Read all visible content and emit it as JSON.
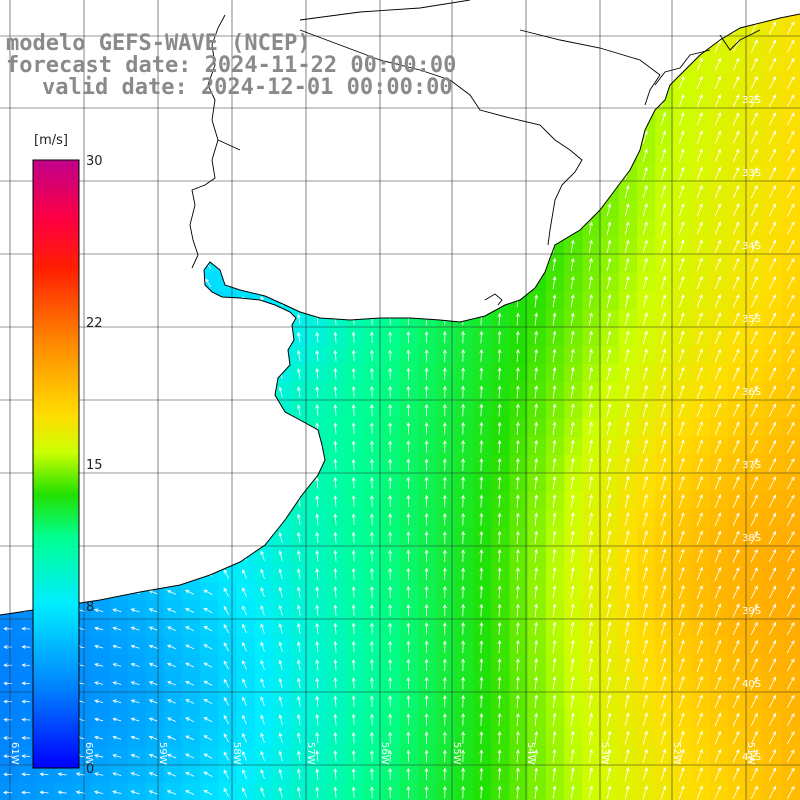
{
  "header": {
    "line1": "modelo GEFS-WAVE (NCEP)",
    "line2": "forecast date: 2024-11-22 00:00:00",
    "line3": "valid date: 2024-12-01 00:00:00"
  },
  "colorbar": {
    "unit": "[m/s]",
    "ticks": [
      {
        "value": 30,
        "label": "30"
      },
      {
        "value": 22,
        "label": "22"
      },
      {
        "value": 15,
        "label": "15"
      },
      {
        "value": 8,
        "label": "8"
      },
      {
        "value": 0,
        "label": "0"
      }
    ],
    "colors": [
      "#0000ff",
      "#0077ff",
      "#00e6ff",
      "#00ff80",
      "#22dd00",
      "#ffff00",
      "#ffaa00",
      "#ff3300",
      "#ff0000",
      "#c8007a"
    ]
  },
  "lat_labels": [
    "32S",
    "33S",
    "34S",
    "35S",
    "36S",
    "37S",
    "38S",
    "39S",
    "40S",
    "41S"
  ],
  "lon_labels": [
    "61W",
    "60W",
    "59W",
    "58W",
    "57W",
    "56W",
    "55W",
    "54W",
    "53W",
    "52W",
    "51W"
  ],
  "grid": {
    "lon_min": -61.6,
    "lon_max": -50.6,
    "lat_min": -41.3,
    "lat_max": -30.5
  }
}
